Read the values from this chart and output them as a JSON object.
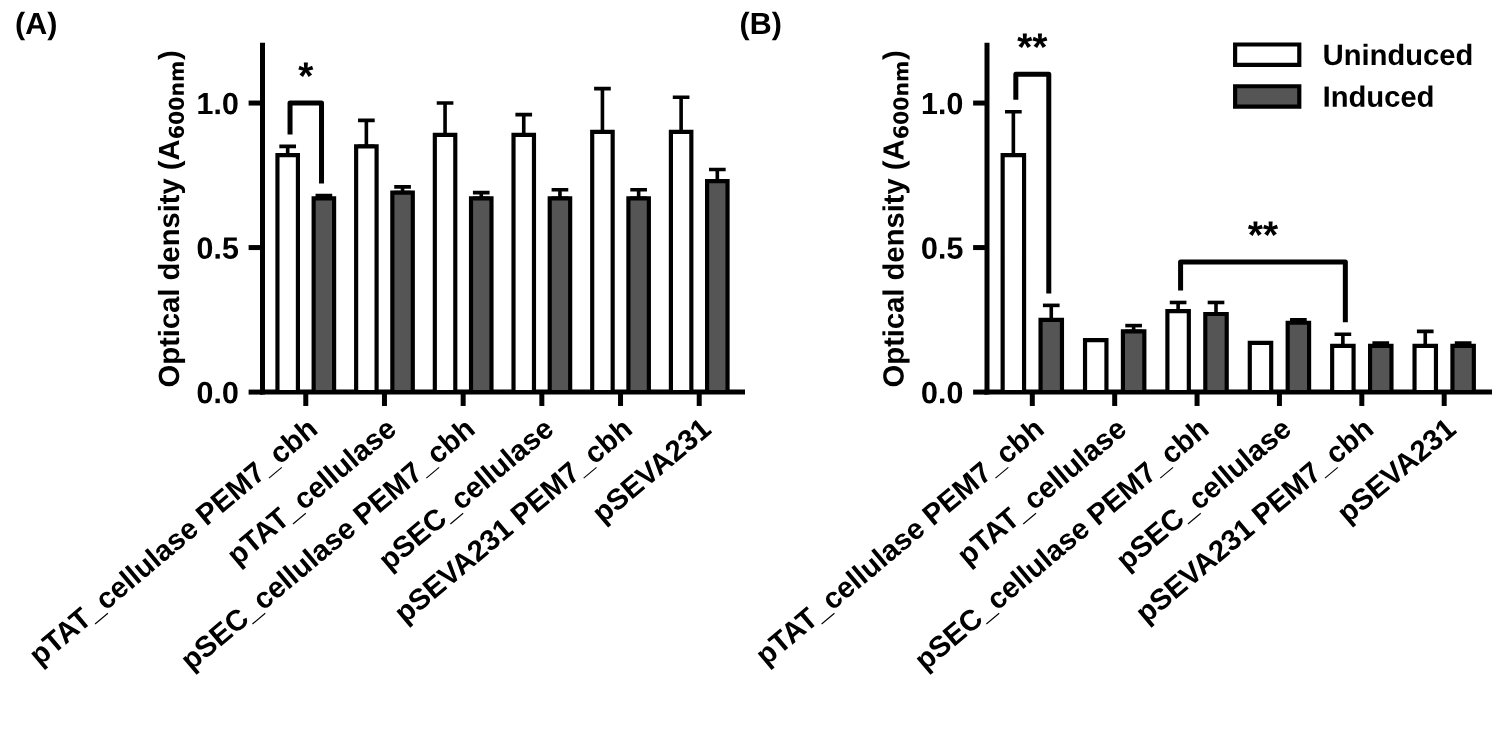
{
  "chart_data": [
    {
      "type": "bar",
      "title": "(A)",
      "ylabel": "Optical density (A$_{600nm}$)",
      "categories": [
        "pTAT_cellulase PEM7_cbh",
        "pTAT_cellulase",
        "pSEC_cellulase PEM7_cbh",
        "pSEC_cellulase",
        "pSEVA231 PEM7_cbh",
        "pSEVA231"
      ],
      "series": [
        {
          "color": "#ffffff",
          "values": [
            0.82,
            0.85,
            0.89,
            0.89,
            0.9,
            0.9
          ],
          "errors": [
            [
              0.82,
              0.85
            ],
            [
              0.85,
              0.94
            ],
            [
              0.89,
              1.0
            ],
            [
              0.89,
              0.96
            ],
            [
              0.9,
              1.05
            ],
            [
              0.9,
              1.02
            ]
          ]
        },
        {
          "color": "#555555",
          "values": [
            0.67,
            0.69,
            0.67,
            0.67,
            0.67,
            0.73
          ],
          "errors": [
            [
              0.67,
              0.68
            ],
            [
              0.69,
              0.71
            ],
            [
              0.67,
              0.69
            ],
            [
              0.67,
              0.7
            ],
            [
              0.67,
              0.7
            ],
            [
              0.73,
              0.77
            ]
          ]
        }
      ],
      "ylim": [
        0,
        1.2
      ],
      "yticks": [
        {
          "value": 0,
          "label": "0.0"
        },
        {
          "value": 0.5,
          "label": "0.5"
        },
        {
          "value": 1.0,
          "label": "1.0"
        }
      ],
      "annotations": [
        "*"
      ],
      "grid": false,
      "legend": false
    },
    {
      "type": "bar",
      "title": "(B)",
      "ylabel": "Optical density (A$_{600nm}$)",
      "categories": [
        "pTAT_cellulase PEM7_cbh",
        "pTAT_cellulase",
        "pSEC_cellulase PEM7_cbh",
        "pSEC_cellulase",
        "pSEVA231 PEM7_cbh",
        "pSEVA231"
      ],
      "series": [
        {
          "name": "Uninduced",
          "color": "#ffffff",
          "values": [
            0.82,
            0.18,
            0.28,
            0.17,
            0.16,
            0.16
          ],
          "errors": [
            [
              0.82,
              0.97
            ],
            [
              0.18,
              0.18
            ],
            [
              0.28,
              0.31
            ],
            [
              0.17,
              0.17
            ],
            [
              0.16,
              0.2
            ],
            [
              0.16,
              0.21
            ]
          ]
        },
        {
          "name": "Induced",
          "color": "#555555",
          "values": [
            0.25,
            0.21,
            0.27,
            0.24,
            0.16,
            0.16
          ],
          "errors": [
            [
              0.25,
              0.3
            ],
            [
              0.21,
              0.23
            ],
            [
              0.27,
              0.31
            ],
            [
              0.24,
              0.25
            ],
            [
              0.16,
              0.17
            ],
            [
              0.16,
              0.17
            ]
          ]
        }
      ],
      "ylim": [
        0,
        1.2
      ],
      "yticks": [
        {
          "value": 0,
          "label": "0.0"
        },
        {
          "value": 0.5,
          "label": "0.5"
        },
        {
          "value": 1.0,
          "label": "1.0"
        }
      ],
      "annotations": [
        "**",
        "**"
      ],
      "grid": false,
      "legend": "top right"
    }
  ]
}
